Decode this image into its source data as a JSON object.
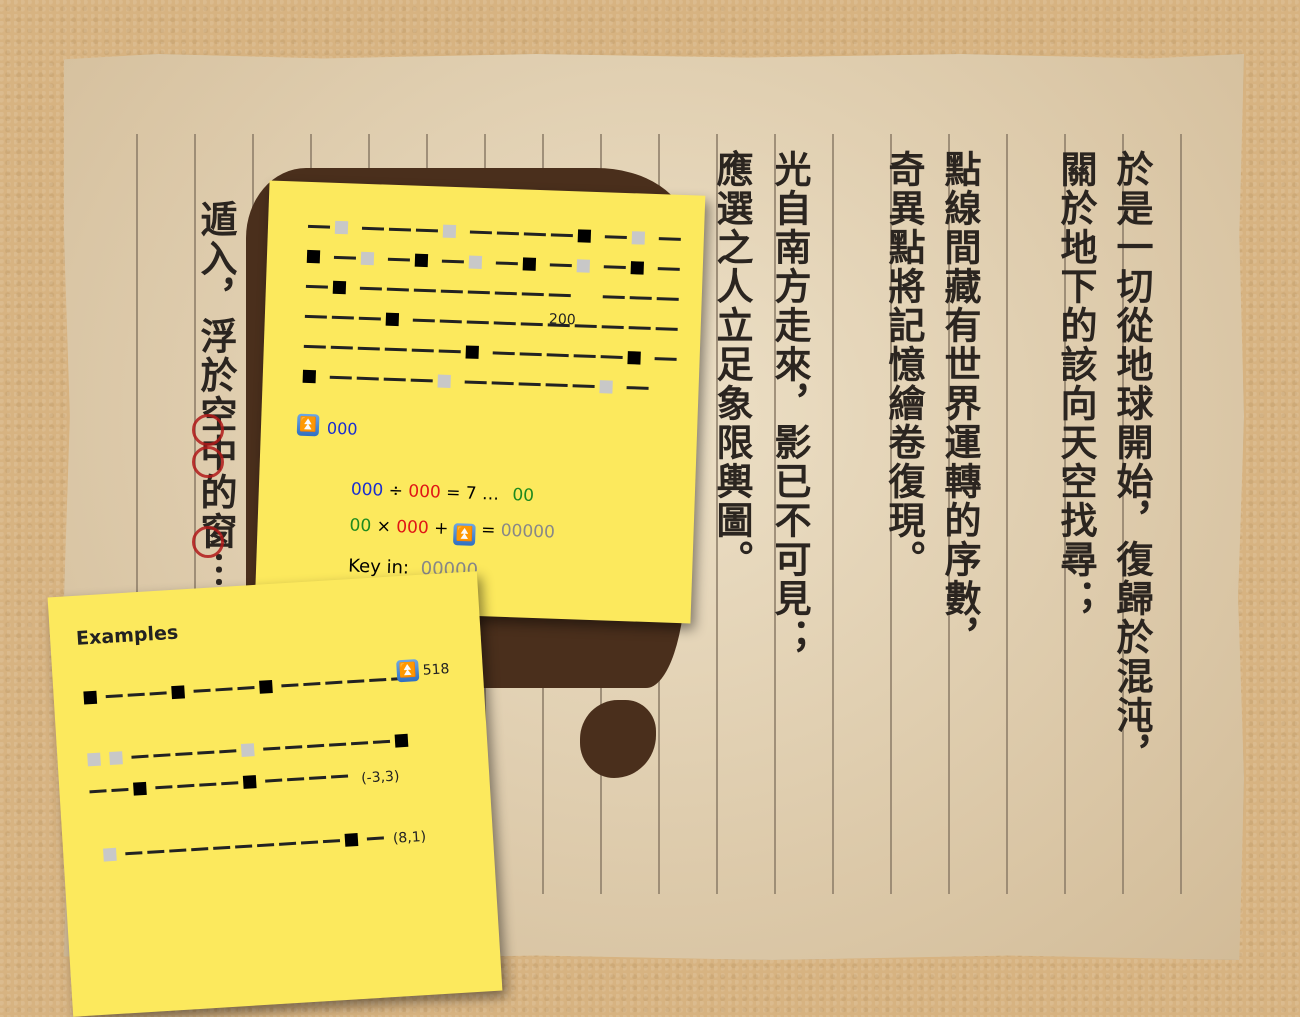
{
  "columns": [
    {
      "text": "於是一切從地球開始，復歸於混沌，"
    },
    {
      "text": "關於地下的該向天空找尋；"
    },
    {
      "text": "點線間藏有世界運轉的序數，"
    },
    {
      "text": "奇異點將記憶繪卷復現。"
    },
    {
      "text": "光自南方走來，影已不可見；"
    },
    {
      "text": "應選之人立足象限輿圖。"
    },
    {
      "text": "遁入，浮於空中的窗⋯"
    }
  ],
  "note1": {
    "label_200": "200",
    "hint_up": "000",
    "eq1": {
      "a": "000",
      "op1": "÷",
      "b": "000",
      "mid": "= 7 …",
      "c": "00"
    },
    "eq2": {
      "a": "00",
      "op1": "×",
      "b": "000",
      "plus": "+",
      "eq": "=",
      "c": "00000"
    },
    "key_label": "Key in:",
    "key_value": "00000",
    "colors": {
      "blue": "#1a2fd0",
      "red": "#e01515",
      "green": "#1e8a1e",
      "gray": "#888888"
    }
  },
  "note2": {
    "title": "Examples",
    "ex1_value": "518",
    "ex2_value": "(-3,3)",
    "ex3_value": "(8,1)"
  }
}
